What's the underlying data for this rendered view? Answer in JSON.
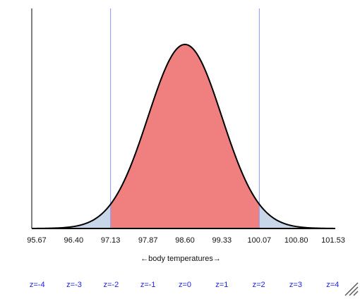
{
  "chart_data": {
    "type": "area",
    "title": "",
    "xlabel": "←body temperatures→",
    "ylabel": "",
    "distribution": "normal",
    "mean": 98.6,
    "sd": 0.73,
    "xlim": [
      95.67,
      101.53
    ],
    "shaded_interval": [
      97.13,
      100.07
    ],
    "shaded_z_interval": [
      -2,
      2
    ],
    "reference_lines_x": [
      97.13,
      100.07
    ],
    "x_ticks": [
      95.67,
      96.4,
      97.13,
      97.87,
      98.6,
      99.33,
      100.07,
      100.8,
      101.53
    ],
    "x_tick_labels": [
      "95.67",
      "96.40",
      "97.13",
      "97.87",
      "98.60",
      "99.33",
      "100.07",
      "100.80",
      "101.53"
    ],
    "z_values": [
      -4,
      -3,
      -2,
      -1,
      0,
      1,
      2,
      3,
      4
    ],
    "z_labels": [
      "z=-4",
      "z=-3",
      "z=-2",
      "z=-1",
      "z=0",
      "z=1",
      "z=2",
      "z=3",
      "z=4"
    ],
    "grid": false,
    "colors": {
      "center_fill": "#f08080",
      "tail_fill": "#c8d6ea",
      "curve": "#000000",
      "reference_line": "#8899ee",
      "z_label": "#1a1aff",
      "axis": "#000000"
    }
  }
}
